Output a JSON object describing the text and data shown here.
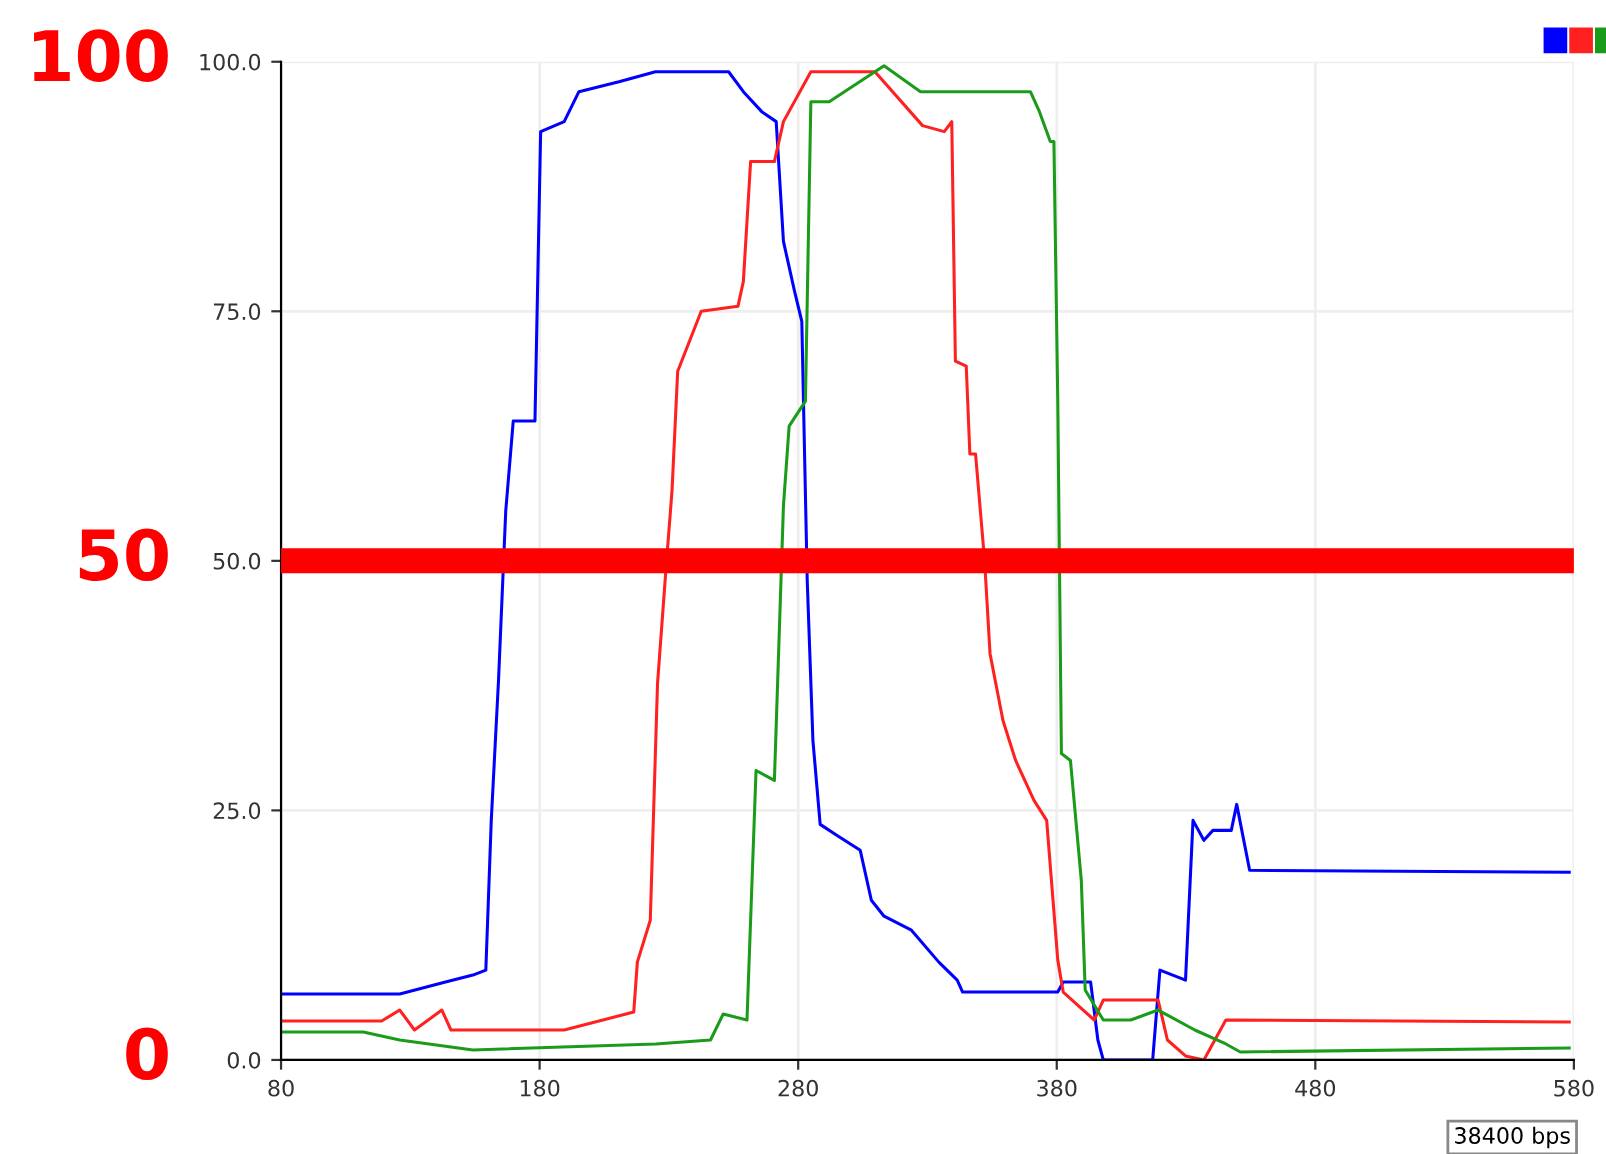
{
  "chart_data": {
    "type": "line",
    "xlim": [
      80,
      580
    ],
    "xticks": [
      80,
      180,
      280,
      380,
      480,
      580
    ],
    "ylim": [
      0,
      100
    ],
    "yticks": [
      {
        "value": 0,
        "label": "0.0"
      },
      {
        "value": 25,
        "label": "25.0"
      },
      {
        "value": 50,
        "label": "50.0"
      },
      {
        "value": 75,
        "label": "75.0"
      },
      {
        "value": 100,
        "label": "100.0"
      }
    ],
    "grid": true,
    "series": [
      {
        "color": "#0000ff",
        "x": [
          80,
          125.9,
          143.6,
          154.2,
          159.2,
          161.3,
          164.1,
          166.9,
          169.8,
          178.2,
          180.4,
          189.5,
          195.2,
          210.7,
          224.8,
          253.1,
          258.8,
          265.9,
          271.5,
          274.3,
          278.6,
          281.4,
          283.5,
          285.7,
          288.5,
          295.5,
          304,
          308.3,
          313.2,
          323.8,
          334.4,
          341.5,
          343.6,
          380.4,
          382.5,
          393.1,
          395.9,
          398,
          417.1,
          419.9,
          429.8,
          432.7,
          436.9,
          440.4,
          447.5,
          449.6,
          454.6,
          578.2
        ],
        "values": [
          6.6,
          6.6,
          7.8,
          8.5,
          9,
          24,
          38,
          55,
          64,
          64,
          93,
          94,
          97,
          98,
          99,
          99,
          97,
          95,
          94,
          82,
          77,
          74,
          48,
          32,
          23.6,
          22.4,
          21,
          16,
          14.4,
          13,
          9.8,
          8,
          6.8,
          6.8,
          7.8,
          7.8,
          2,
          0,
          0,
          9,
          8,
          24,
          22,
          23,
          23,
          25.6,
          19,
          18.8
        ]
      },
      {
        "color": "#ff2020",
        "x": [
          80,
          118.9,
          125.9,
          131.6,
          142.2,
          145.7,
          189.5,
          216.4,
          217.8,
          222.8,
          225.6,
          229.1,
          231.2,
          233.4,
          242.5,
          256.7,
          258.8,
          261.6,
          270.8,
          274.3,
          284.9,
          309.7,
          328.1,
          336.5,
          339.4,
          340.8,
          345,
          346.4,
          348.6,
          352.1,
          354.2,
          359.2,
          364.1,
          371.2,
          376.1,
          380.4,
          382.5,
          394.5,
          398,
          419.2,
          422.8,
          429.8,
          436.9,
          445.4,
          578.2
        ],
        "values": [
          3.9,
          3.9,
          5,
          3,
          5,
          3,
          3,
          4.8,
          9.8,
          14,
          37.7,
          50,
          57,
          69,
          75,
          75.5,
          78,
          90,
          90,
          94,
          99,
          99,
          93.6,
          93,
          94,
          70,
          69.5,
          60.7,
          60.7,
          50,
          40.7,
          34,
          30,
          26,
          24,
          10,
          6.8,
          4,
          6,
          6,
          2,
          0.4,
          0,
          4,
          3.8
        ]
      },
      {
        "color": "#1a9c1a",
        "x": [
          80,
          111.8,
          125.9,
          154.2,
          224.9,
          246.1,
          251,
          260.2,
          263.7,
          270.8,
          274.3,
          276.5,
          282.8,
          284.9,
          292,
          313.2,
          327.3,
          369.8,
          373.3,
          377.5,
          378.9,
          380.4,
          381.8,
          385.3,
          389.5,
          391,
          398,
          408.6,
          419.2,
          433.4,
          445.4,
          451,
          578.2
        ],
        "values": [
          2.8,
          2.8,
          2,
          1,
          1.6,
          2,
          4.6,
          4,
          29,
          28,
          55.5,
          63.5,
          66,
          96,
          96,
          99.6,
          97,
          97,
          95,
          92,
          92,
          66,
          30.7,
          30,
          18,
          7,
          4,
          4,
          5,
          3,
          1.6,
          0.8,
          1.2
        ]
      }
    ],
    "ref_lines": [
      {
        "axis": "y",
        "value": 50,
        "color": "#ff0000"
      }
    ],
    "annotations": [
      "100",
      "50",
      "0",
      "38400 bps"
    ]
  }
}
